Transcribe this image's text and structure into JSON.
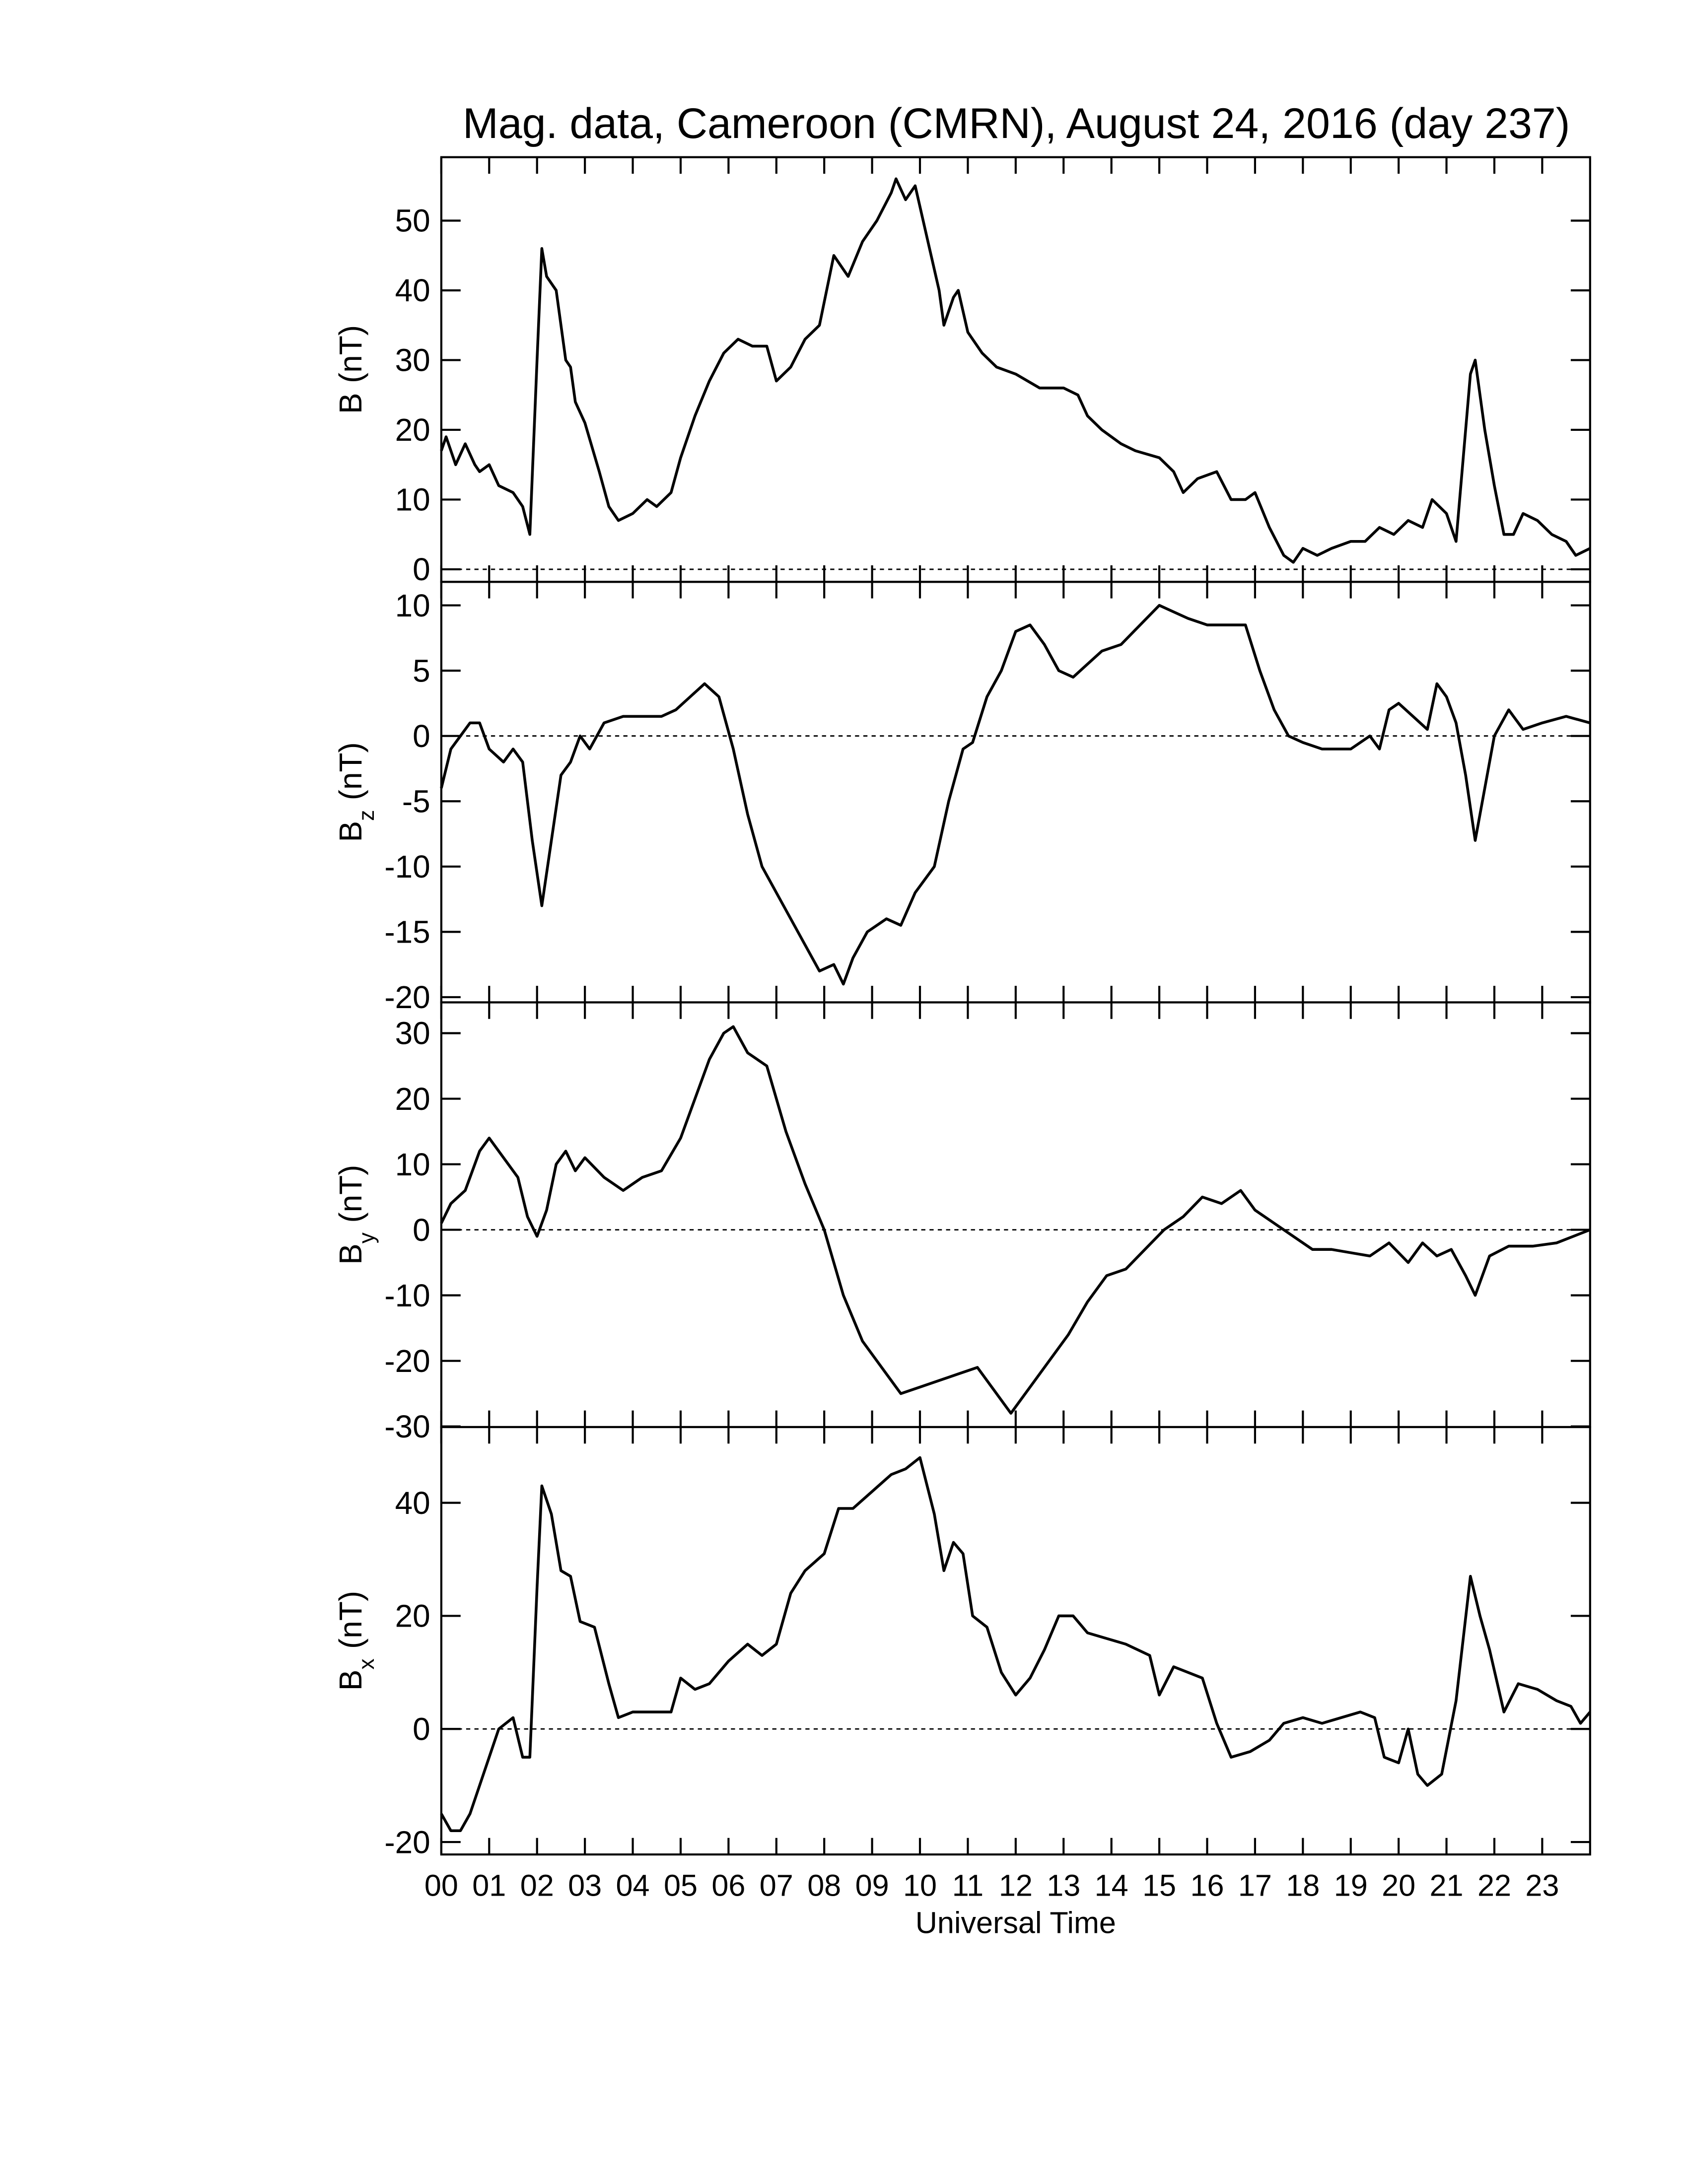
{
  "chart_data": [
    {
      "type": "line",
      "title": "Mag. data, Cameroon (CMRN), August 24, 2016 (day 237)",
      "ylabel": "B",
      "ylabel_unit": "(nT)",
      "color": "#000000",
      "hline": 0,
      "xlim": [
        0,
        24
      ],
      "ylim": [
        -1.8,
        59.1
      ],
      "yticks": [
        0,
        10,
        20,
        30,
        40,
        50
      ],
      "x": [
        0,
        0.1,
        0.3,
        0.5,
        0.7,
        0.8,
        1.0,
        1.2,
        1.5,
        1.7,
        1.85,
        2.0,
        2.1,
        2.2,
        2.4,
        2.6,
        2.7,
        2.8,
        3.0,
        3.3,
        3.5,
        3.7,
        4.0,
        4.3,
        4.5,
        4.8,
        5.0,
        5.3,
        5.6,
        5.9,
        6.2,
        6.5,
        6.8,
        7.0,
        7.3,
        7.6,
        7.9,
        8.2,
        8.5,
        8.8,
        9.1,
        9.4,
        9.5,
        9.7,
        9.9,
        10.0,
        10.2,
        10.4,
        10.5,
        10.7,
        10.8,
        11.0,
        11.3,
        11.6,
        12.0,
        12.5,
        13.0,
        13.3,
        13.5,
        13.8,
        14.2,
        14.5,
        15.0,
        15.3,
        15.5,
        15.8,
        16.2,
        16.5,
        16.8,
        17.0,
        17.3,
        17.6,
        17.8,
        18.0,
        18.3,
        18.6,
        19.0,
        19.3,
        19.6,
        19.9,
        20.2,
        20.5,
        20.7,
        21.0,
        21.2,
        21.5,
        21.6,
        21.8,
        22.0,
        22.2,
        22.4,
        22.6,
        22.9,
        23.2,
        23.5,
        23.7,
        24.0
      ],
      "values": [
        17,
        19,
        15,
        18,
        15,
        14,
        15,
        12,
        11,
        9,
        5,
        30,
        46,
        42,
        40,
        30,
        29,
        24,
        21,
        14,
        9,
        7,
        8,
        10,
        9,
        11,
        16,
        22,
        27,
        31,
        33,
        32,
        32,
        27,
        29,
        33,
        35,
        45,
        42,
        47,
        50,
        54,
        56,
        53,
        55,
        52,
        46,
        40,
        35,
        39,
        40,
        34,
        31,
        29,
        28,
        26,
        26,
        25,
        22,
        20,
        18,
        17,
        16,
        14,
        11,
        13,
        14,
        10,
        10,
        11,
        6,
        2,
        1,
        3,
        2,
        3,
        4,
        4,
        6,
        5,
        7,
        6,
        10,
        8,
        4,
        28,
        30,
        20,
        12,
        5,
        5,
        8,
        7,
        5,
        4,
        2,
        3
      ]
    },
    {
      "type": "line",
      "ylabel": "B",
      "ylabel_sub": "z",
      "ylabel_unit": "(nT)",
      "color": "#000000",
      "hline": 0,
      "xlim": [
        0,
        24
      ],
      "ylim": [
        -20.4,
        11.8
      ],
      "yticks": [
        -20,
        -15,
        -10,
        -5,
        0,
        5,
        10
      ],
      "x": [
        0,
        0.2,
        0.4,
        0.6,
        0.8,
        1.0,
        1.3,
        1.5,
        1.7,
        1.9,
        2.1,
        2.3,
        2.5,
        2.7,
        2.9,
        3.1,
        3.4,
        3.8,
        4.2,
        4.6,
        4.9,
        5.2,
        5.5,
        5.8,
        6.1,
        6.4,
        6.7,
        7.0,
        7.3,
        7.6,
        7.9,
        8.2,
        8.4,
        8.6,
        8.9,
        9.3,
        9.6,
        9.9,
        10.3,
        10.6,
        10.9,
        11.1,
        11.4,
        11.7,
        12.0,
        12.3,
        12.6,
        12.9,
        13.2,
        13.5,
        13.8,
        14.2,
        14.6,
        15.0,
        15.3,
        15.6,
        16.0,
        16.5,
        16.8,
        17.1,
        17.4,
        17.7,
        18.0,
        18.4,
        19.0,
        19.4,
        19.6,
        19.8,
        20.0,
        20.3,
        20.6,
        20.8,
        21.0,
        21.2,
        21.4,
        21.6,
        21.8,
        22.0,
        22.3,
        22.6,
        23.0,
        23.5,
        24.0
      ],
      "values": [
        -4,
        -1,
        0,
        1,
        1,
        -1,
        -2,
        -1,
        -2,
        -8,
        -13,
        -8,
        -3,
        -2,
        0,
        -1,
        1,
        1.5,
        1.5,
        1.5,
        2,
        3,
        4,
        3,
        -1,
        -6,
        -10,
        -12,
        -14,
        -16,
        -18,
        -17.5,
        -19,
        -17,
        -15,
        -14,
        -14.5,
        -12,
        -10,
        -5,
        -1,
        -0.5,
        3,
        5,
        8,
        8.5,
        7,
        5,
        4.5,
        5.5,
        6.5,
        7,
        8.5,
        10,
        9.5,
        9,
        8.5,
        8.5,
        8.5,
        5,
        2,
        0,
        -0.5,
        -1,
        -1,
        0,
        -1,
        2,
        2.5,
        1.5,
        0.5,
        4,
        3,
        1,
        -3,
        -8,
        -4,
        0,
        2,
        0.5,
        1,
        1.5,
        1
      ]
    },
    {
      "type": "line",
      "ylabel": "B",
      "ylabel_sub": "y",
      "ylabel_unit": "(nT)",
      "color": "#000000",
      "hline": 0,
      "xlim": [
        0,
        24
      ],
      "ylim": [
        -30.1,
        34.7
      ],
      "yticks": [
        -30,
        -20,
        -10,
        0,
        10,
        20,
        30
      ],
      "x": [
        0,
        0.2,
        0.5,
        0.8,
        1.0,
        1.3,
        1.6,
        1.8,
        2.0,
        2.2,
        2.4,
        2.6,
        2.8,
        3.0,
        3.4,
        3.8,
        4.2,
        4.6,
        5.0,
        5.3,
        5.6,
        5.9,
        6.1,
        6.4,
        6.8,
        7.2,
        7.6,
        8.0,
        8.4,
        8.8,
        9.2,
        9.6,
        10.0,
        10.4,
        10.8,
        11.2,
        11.5,
        11.9,
        12.3,
        12.7,
        13.1,
        13.5,
        13.9,
        14.3,
        14.7,
        15.1,
        15.5,
        15.9,
        16.3,
        16.7,
        17.0,
        17.4,
        17.8,
        18.2,
        18.6,
        19.0,
        19.4,
        19.8,
        20.2,
        20.5,
        20.8,
        21.1,
        21.4,
        21.6,
        21.9,
        22.3,
        22.8,
        23.3,
        24.0
      ],
      "values": [
        1,
        4,
        6,
        12,
        14,
        11,
        8,
        2,
        -1,
        3,
        10,
        12,
        9,
        11,
        8,
        6,
        8,
        9,
        14,
        20,
        26,
        30,
        31,
        27,
        25,
        15,
        7,
        0,
        -10,
        -17,
        -21,
        -25,
        -24,
        -23,
        -22,
        -21,
        -24,
        -28,
        -24,
        -20,
        -16,
        -11,
        -7,
        -6,
        -3,
        0,
        2,
        5,
        4,
        6,
        3,
        1,
        -1,
        -3,
        -3,
        -3.5,
        -4,
        -2,
        -5,
        -2,
        -4,
        -3,
        -7,
        -10,
        -4,
        -2.5,
        -2.5,
        -2,
        0
      ]
    },
    {
      "type": "line",
      "ylabel": "B",
      "ylabel_sub": "x",
      "ylabel_unit": "(nT)",
      "xlabel": "Universal Time",
      "color": "#000000",
      "hline": 0,
      "xlim": [
        0,
        24
      ],
      "ylim": [
        -22.2,
        53.4
      ],
      "yticks": [
        -20,
        0,
        20,
        40
      ],
      "xticks": [
        {
          "value": 0,
          "label": "00"
        },
        {
          "value": 1,
          "label": "01"
        },
        {
          "value": 2,
          "label": "02"
        },
        {
          "value": 3,
          "label": "03"
        },
        {
          "value": 4,
          "label": "04"
        },
        {
          "value": 5,
          "label": "05"
        },
        {
          "value": 6,
          "label": "06"
        },
        {
          "value": 7,
          "label": "07"
        },
        {
          "value": 8,
          "label": "08"
        },
        {
          "value": 9,
          "label": "09"
        },
        {
          "value": 10,
          "label": "10"
        },
        {
          "value": 11,
          "label": "11"
        },
        {
          "value": 12,
          "label": "12"
        },
        {
          "value": 13,
          "label": "13"
        },
        {
          "value": 14,
          "label": "14"
        },
        {
          "value": 15,
          "label": "15"
        },
        {
          "value": 16,
          "label": "16"
        },
        {
          "value": 17,
          "label": "17"
        },
        {
          "value": 18,
          "label": "18"
        },
        {
          "value": 19,
          "label": "19"
        },
        {
          "value": 20,
          "label": "20"
        },
        {
          "value": 21,
          "label": "21"
        },
        {
          "value": 22,
          "label": "22"
        },
        {
          "value": 23,
          "label": "23"
        }
      ],
      "x": [
        0,
        0.2,
        0.4,
        0.6,
        0.8,
        1.0,
        1.2,
        1.5,
        1.7,
        1.85,
        2.0,
        2.1,
        2.3,
        2.5,
        2.7,
        2.9,
        3.2,
        3.5,
        3.7,
        4.0,
        4.4,
        4.8,
        5.0,
        5.3,
        5.6,
        6.0,
        6.4,
        6.7,
        7.0,
        7.3,
        7.6,
        8.0,
        8.3,
        8.6,
        9.0,
        9.4,
        9.7,
        10.0,
        10.3,
        10.5,
        10.7,
        10.9,
        11.1,
        11.4,
        11.7,
        12.0,
        12.3,
        12.6,
        12.9,
        13.2,
        13.5,
        13.9,
        14.3,
        14.8,
        15.0,
        15.3,
        15.6,
        15.9,
        16.2,
        16.5,
        16.9,
        17.3,
        17.6,
        18.0,
        18.4,
        18.8,
        19.2,
        19.5,
        19.7,
        20.0,
        20.2,
        20.4,
        20.6,
        20.9,
        21.2,
        21.5,
        21.7,
        21.9,
        22.2,
        22.5,
        22.9,
        23.3,
        23.6,
        23.8,
        24.0
      ],
      "values": [
        -15,
        -18,
        -18,
        -15,
        -10,
        -5,
        0,
        2,
        -5,
        -5,
        25,
        43,
        38,
        28,
        27,
        19,
        18,
        8,
        2,
        3,
        3,
        3,
        9,
        7,
        8,
        12,
        15,
        13,
        15,
        24,
        28,
        31,
        39,
        39,
        42,
        45,
        46,
        48,
        38,
        28,
        33,
        31,
        20,
        18,
        10,
        6,
        9,
        14,
        20,
        20,
        17,
        16,
        15,
        13,
        6,
        11,
        10,
        9,
        1,
        -5,
        -4,
        -2,
        1,
        2,
        1,
        2,
        3,
        2,
        -5,
        -6,
        0,
        -8,
        -10,
        -8,
        5,
        27,
        20,
        14,
        3,
        8,
        7,
        5,
        4,
        1,
        3
      ]
    }
  ]
}
